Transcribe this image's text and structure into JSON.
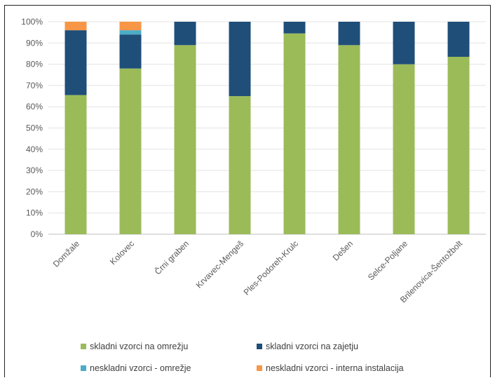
{
  "chart_data": {
    "type": "bar",
    "stacked": true,
    "categories": [
      "Domžale",
      "Kolovec",
      "Črni graben",
      "Krvavec-Mengeš",
      "Ples-Podoreh-Krulc",
      "Dešen",
      "Selce-Poljane",
      "Brilenovica-Šentožbolt"
    ],
    "y_ticks": [
      "0%",
      "10%",
      "20%",
      "30%",
      "40%",
      "50%",
      "60%",
      "70%",
      "80%",
      "90%",
      "100%"
    ],
    "ylim": [
      0,
      100
    ],
    "series": [
      {
        "name": "skladni vzorci na omrežju",
        "color": "#9bbb59",
        "values": [
          65.5,
          78,
          89,
          65,
          94.5,
          89,
          80,
          83.5
        ]
      },
      {
        "name": "skladni vzorci na zajetju",
        "color": "#1f4e79",
        "values": [
          30.5,
          16,
          11,
          35,
          5.5,
          11,
          20,
          16.5
        ]
      },
      {
        "name": "neskladni vzorci - omrežje",
        "color": "#4bacc6",
        "values": [
          0,
          2,
          0,
          0,
          0,
          0,
          0,
          0
        ]
      },
      {
        "name": "neskladni vzorci - interna instalacija",
        "color": "#f79646",
        "values": [
          4,
          4,
          0,
          0,
          0,
          0,
          0,
          0
        ]
      }
    ],
    "grid": true,
    "legend_position": "bottom"
  }
}
